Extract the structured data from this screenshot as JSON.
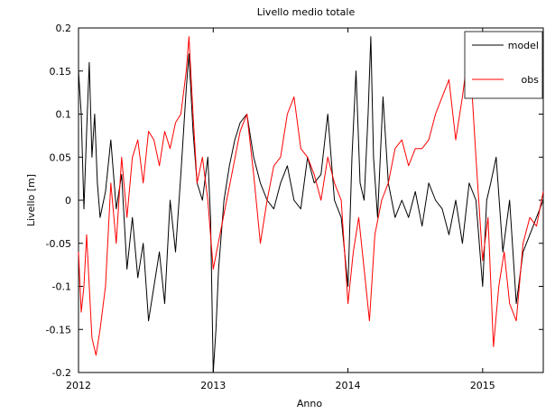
{
  "chart_data": {
    "type": "line",
    "title": "Livello medio totale",
    "xlabel": "Anno",
    "ylabel": "Livello [m]",
    "xlim": [
      2012.0,
      2015.45
    ],
    "ylim": [
      -0.2,
      0.2
    ],
    "xticks": [
      2012,
      2013,
      2014,
      2015
    ],
    "yticks": [
      -0.2,
      -0.15,
      -0.1,
      -0.05,
      0,
      0.05,
      0.1,
      0.15,
      0.2
    ],
    "ytick_labels": [
      "-0.2",
      "-0.15",
      "-0.1",
      "-0.05",
      "0",
      "0.05",
      "0.1",
      "0.15",
      "0.2"
    ],
    "grid": false,
    "legend_position": "top-right",
    "series": [
      {
        "name": "model",
        "color": "#000000",
        "x": [
          2012.0,
          2012.02,
          2012.04,
          2012.06,
          2012.08,
          2012.1,
          2012.12,
          2012.14,
          2012.16,
          2012.2,
          2012.24,
          2012.28,
          2012.32,
          2012.36,
          2012.4,
          2012.44,
          2012.48,
          2012.52,
          2012.56,
          2012.6,
          2012.64,
          2012.68,
          2012.72,
          2012.76,
          2012.8,
          2012.82,
          2012.85,
          2012.88,
          2012.92,
          2012.96,
          2012.98,
          2013.0,
          2013.02,
          2013.04,
          2013.08,
          2013.12,
          2013.16,
          2013.2,
          2013.25,
          2013.3,
          2013.35,
          2013.4,
          2013.45,
          2013.5,
          2013.55,
          2013.6,
          2013.65,
          2013.7,
          2013.75,
          2013.8,
          2013.85,
          2013.9,
          2013.95,
          2014.0,
          2014.03,
          2014.06,
          2014.09,
          2014.12,
          2014.15,
          2014.17,
          2014.19,
          2014.22,
          2014.26,
          2014.3,
          2014.35,
          2014.4,
          2014.45,
          2014.5,
          2014.55,
          2014.6,
          2014.65,
          2014.7,
          2014.75,
          2014.8,
          2014.85,
          2014.9,
          2014.95,
          2015.0,
          2015.03,
          2015.06,
          2015.1,
          2015.15,
          2015.2,
          2015.25,
          2015.3,
          2015.35,
          2015.4,
          2015.45
        ],
        "y": [
          0.15,
          0.1,
          -0.01,
          0.08,
          0.16,
          0.05,
          0.1,
          0.02,
          -0.02,
          0.01,
          0.07,
          -0.01,
          0.03,
          -0.08,
          -0.02,
          -0.09,
          -0.05,
          -0.14,
          -0.1,
          -0.06,
          -0.12,
          0.0,
          -0.06,
          0.03,
          0.13,
          0.17,
          0.08,
          0.02,
          0.0,
          0.05,
          -0.02,
          -0.2,
          -0.15,
          -0.08,
          0.0,
          0.04,
          0.07,
          0.09,
          0.1,
          0.05,
          0.02,
          0.0,
          -0.01,
          0.02,
          0.04,
          0.0,
          -0.01,
          0.05,
          0.02,
          0.03,
          0.1,
          0.0,
          -0.02,
          -0.1,
          0.05,
          0.15,
          0.02,
          0.0,
          0.1,
          0.19,
          0.05,
          -0.02,
          0.12,
          0.02,
          -0.02,
          0.0,
          -0.02,
          0.01,
          -0.03,
          0.02,
          0.0,
          -0.01,
          -0.04,
          0.0,
          -0.05,
          0.02,
          0.0,
          -0.1,
          0.0,
          0.02,
          0.05,
          -0.06,
          0.0,
          -0.12,
          -0.06,
          -0.04,
          -0.02,
          0.0
        ]
      },
      {
        "name": "obs",
        "color": "#ff0000",
        "x": [
          2012.0,
          2012.02,
          2012.04,
          2012.06,
          2012.08,
          2012.1,
          2012.13,
          2012.16,
          2012.2,
          2012.24,
          2012.28,
          2012.32,
          2012.36,
          2012.4,
          2012.44,
          2012.48,
          2012.52,
          2012.56,
          2012.6,
          2012.64,
          2012.68,
          2012.72,
          2012.76,
          2012.8,
          2012.82,
          2012.85,
          2012.88,
          2012.92,
          2012.96,
          2013.0,
          2013.05,
          2013.1,
          2013.15,
          2013.2,
          2013.25,
          2013.3,
          2013.35,
          2013.4,
          2013.45,
          2013.5,
          2013.55,
          2013.6,
          2013.65,
          2013.7,
          2013.75,
          2013.8,
          2013.85,
          2013.9,
          2013.95,
          2014.0,
          2014.04,
          2014.08,
          2014.12,
          2014.16,
          2014.2,
          2014.25,
          2014.3,
          2014.35,
          2014.4,
          2014.45,
          2014.5,
          2014.55,
          2014.6,
          2014.65,
          2014.7,
          2014.75,
          2014.8,
          2014.85,
          2014.9,
          2014.95,
          2015.0,
          2015.04,
          2015.08,
          2015.12,
          2015.16,
          2015.2,
          2015.25,
          2015.3,
          2015.35,
          2015.4,
          2015.45
        ],
        "y": [
          -0.06,
          -0.13,
          -0.1,
          -0.04,
          -0.1,
          -0.16,
          -0.18,
          -0.15,
          -0.1,
          0.02,
          -0.05,
          0.05,
          -0.02,
          0.05,
          0.07,
          0.02,
          0.08,
          0.07,
          0.04,
          0.08,
          0.06,
          0.09,
          0.1,
          0.15,
          0.19,
          0.1,
          0.02,
          0.05,
          0.0,
          -0.08,
          -0.04,
          0.0,
          0.04,
          0.08,
          0.1,
          0.03,
          -0.05,
          0.0,
          0.04,
          0.05,
          0.1,
          0.12,
          0.06,
          0.05,
          0.03,
          0.0,
          0.05,
          0.02,
          0.0,
          -0.12,
          -0.06,
          -0.02,
          -0.08,
          -0.14,
          -0.04,
          0.0,
          0.02,
          0.06,
          0.07,
          0.04,
          0.06,
          0.06,
          0.07,
          0.1,
          0.12,
          0.14,
          0.07,
          0.12,
          0.18,
          0.05,
          -0.07,
          -0.02,
          -0.17,
          -0.1,
          -0.06,
          -0.12,
          -0.14,
          -0.05,
          -0.02,
          -0.03,
          0.01
        ]
      }
    ]
  }
}
